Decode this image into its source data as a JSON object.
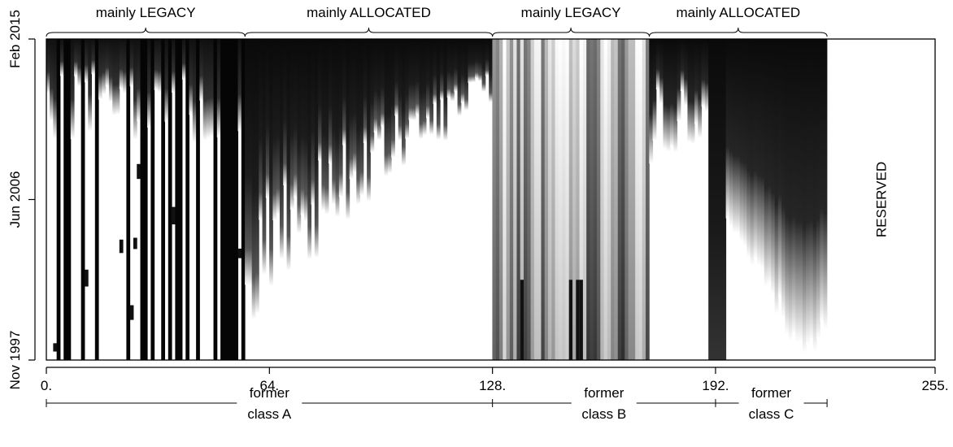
{
  "chart_data": {
    "type": "heatmap",
    "title": "",
    "x_axis": {
      "label": "",
      "range": [
        0,
        255
      ],
      "ticks": [
        {
          "value": 0,
          "label": "0."
        },
        {
          "value": 64,
          "label": "64."
        },
        {
          "value": 128,
          "label": "128."
        },
        {
          "value": 192,
          "label": "192."
        },
        {
          "value": 255,
          "label": "255."
        }
      ]
    },
    "y_axis": {
      "label": "",
      "range": [
        "Nov 1997",
        "Feb 2015"
      ],
      "ticks": [
        "Nov 1997",
        "Jun 2006",
        "Feb 2015"
      ]
    },
    "top_brackets": [
      {
        "label": "mainly LEGACY",
        "from": 0,
        "to": 57
      },
      {
        "label": "mainly ALLOCATED",
        "from": 57,
        "to": 128
      },
      {
        "label": "mainly LEGACY",
        "from": 128,
        "to": 173
      },
      {
        "label": "mainly ALLOCATED",
        "from": 173,
        "to": 224
      }
    ],
    "bottom_ranges": [
      {
        "label_line1": "former",
        "label_line2": "class A",
        "from": 0,
        "to": 128
      },
      {
        "label_line1": "former",
        "label_line2": "class B",
        "from": 128,
        "to": 192
      },
      {
        "label_line1": "former",
        "label_line2": "class C",
        "from": 192,
        "to": 224
      }
    ],
    "annotations": [
      {
        "text": "RESERVED",
        "x_from": 224,
        "x_to": 255
      }
    ],
    "color_scale": "grayscale"
  }
}
